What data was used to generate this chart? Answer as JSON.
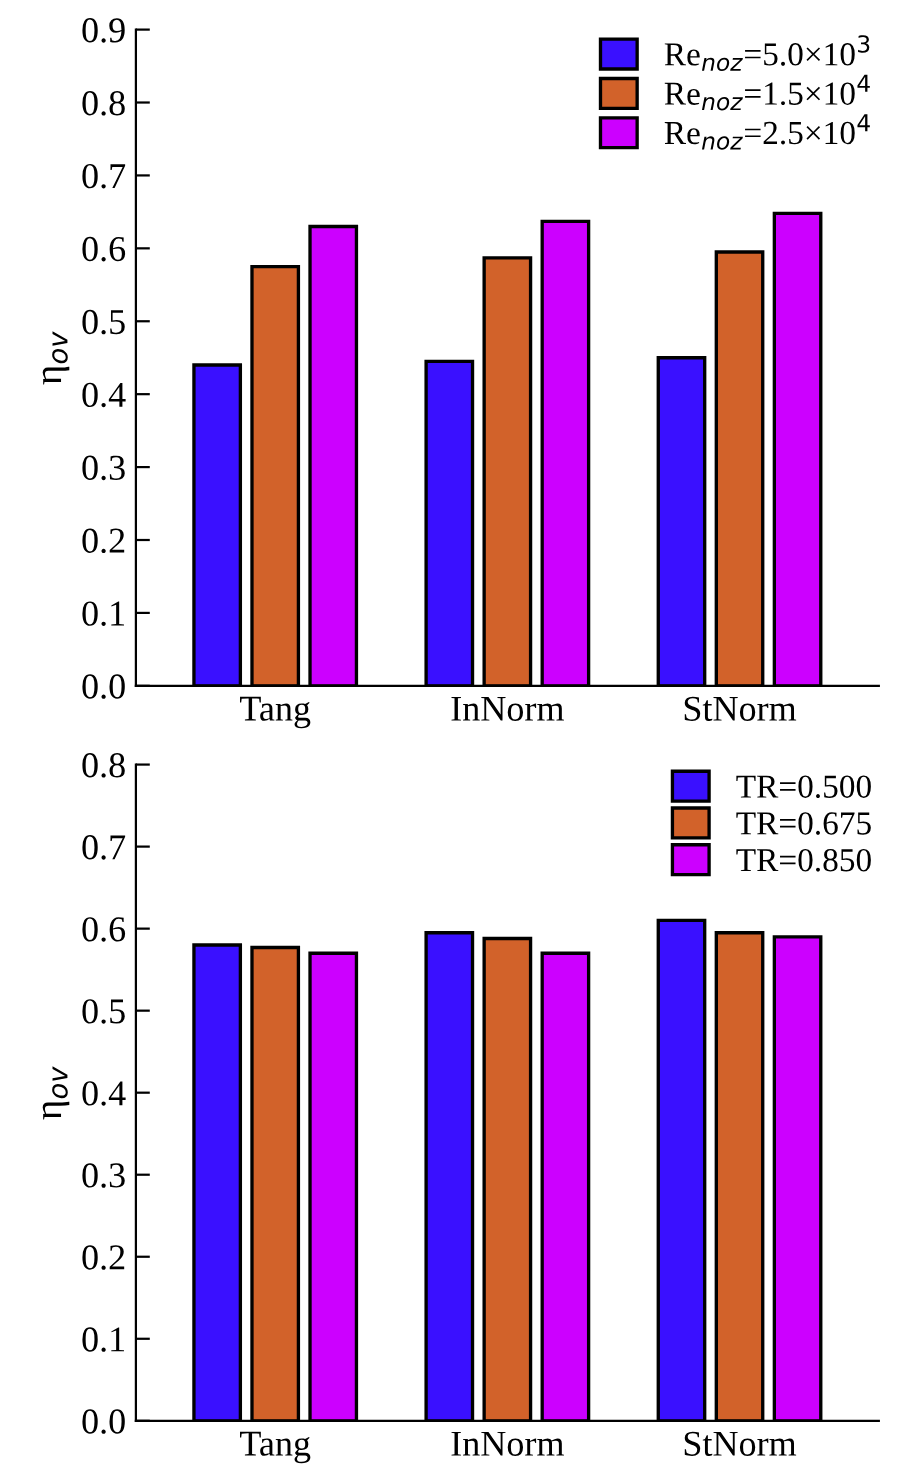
{
  "chart_data": [
    {
      "type": "bar",
      "ylabel": "η$_{ov}$",
      "categories": [
        "Tang",
        "InNorm",
        "StNorm"
      ],
      "ylim": [
        0,
        0.9
      ],
      "yticks": [
        {
          "value": 0,
          "label": "0.0"
        },
        0.1,
        0.2,
        0.3,
        0.4,
        0.5,
        0.6,
        0.7,
        0.8,
        0.9
      ],
      "legend": "top right",
      "grid": false,
      "series": [
        {
          "name": "Re$_{noz}$=5.0×10$^{3}$",
          "color": "#3a10ff",
          "values": [
            0.44,
            0.445,
            0.45
          ]
        },
        {
          "name": "Re$_{noz}$=1.5×10$^{4}$",
          "color": "#d2622a",
          "values": [
            0.575,
            0.587,
            0.595
          ]
        },
        {
          "name": "Re$_{noz}$=2.5×10$^{4}$",
          "color": "#cc00ff",
          "values": [
            0.63,
            0.637,
            0.648
          ]
        }
      ]
    },
    {
      "type": "bar",
      "ylabel": "η$_{ov}$",
      "categories": [
        "Tang",
        "InNorm",
        "StNorm"
      ],
      "ylim": [
        0,
        0.8
      ],
      "yticks": [
        {
          "value": 0,
          "label": "0.0"
        },
        0.1,
        0.2,
        0.3,
        0.4,
        0.5,
        0.6,
        0.7,
        0.8
      ],
      "legend": "top right",
      "grid": false,
      "series": [
        {
          "name": "TR=0.500",
          "color": "#3a10ff",
          "values": [
            0.58,
            0.595,
            0.61
          ]
        },
        {
          "name": "TR=0.675",
          "color": "#d2622a",
          "values": [
            0.577,
            0.588,
            0.595
          ]
        },
        {
          "name": "TR=0.850",
          "color": "#cc00ff",
          "values": [
            0.57,
            0.57,
            0.59
          ]
        }
      ]
    }
  ]
}
